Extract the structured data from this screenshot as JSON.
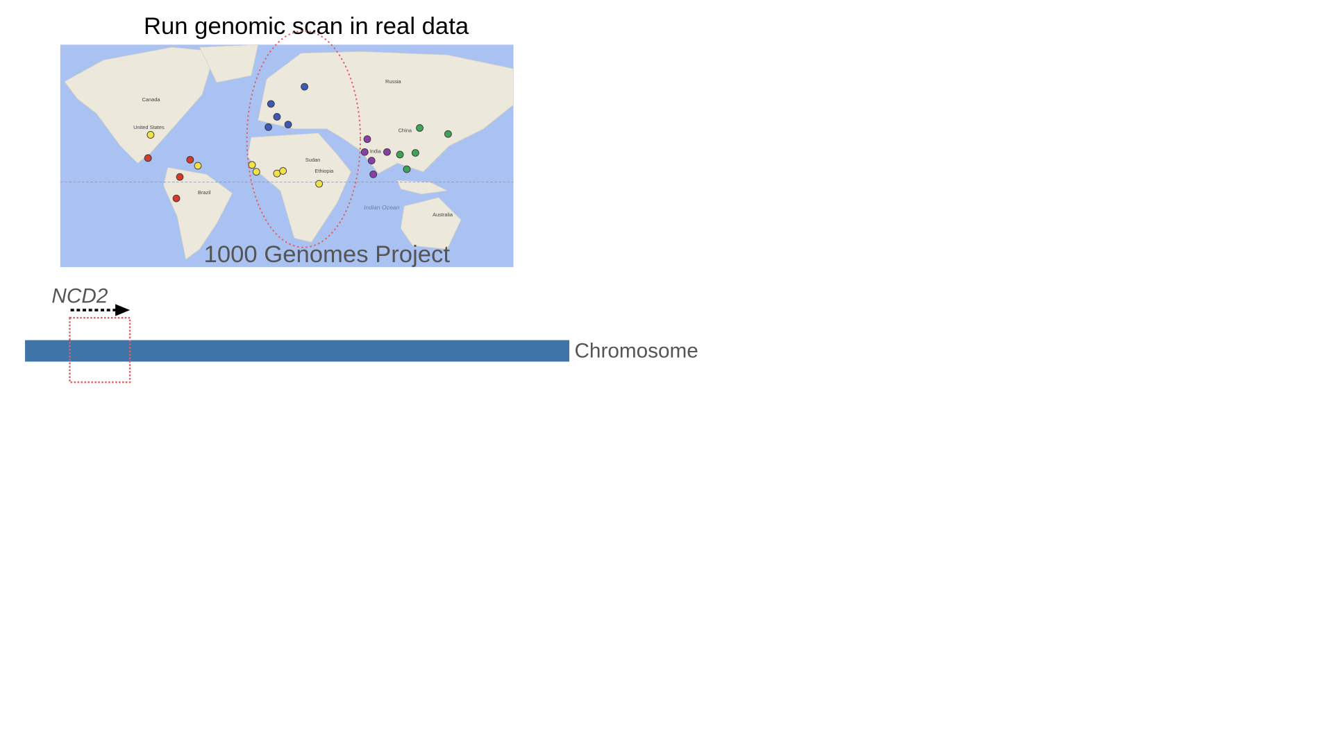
{
  "title": "Run genomic scan in real data",
  "map": {
    "label": "1000 Genomes Project",
    "places": [
      "Canada",
      "United States",
      "Brazil",
      "Russia",
      "China",
      "Australia",
      "Indian Ocean",
      "Sudan",
      "Ethiopia",
      "India"
    ]
  },
  "gene_label": "NCD2",
  "chromosome_label": "Chromosome"
}
